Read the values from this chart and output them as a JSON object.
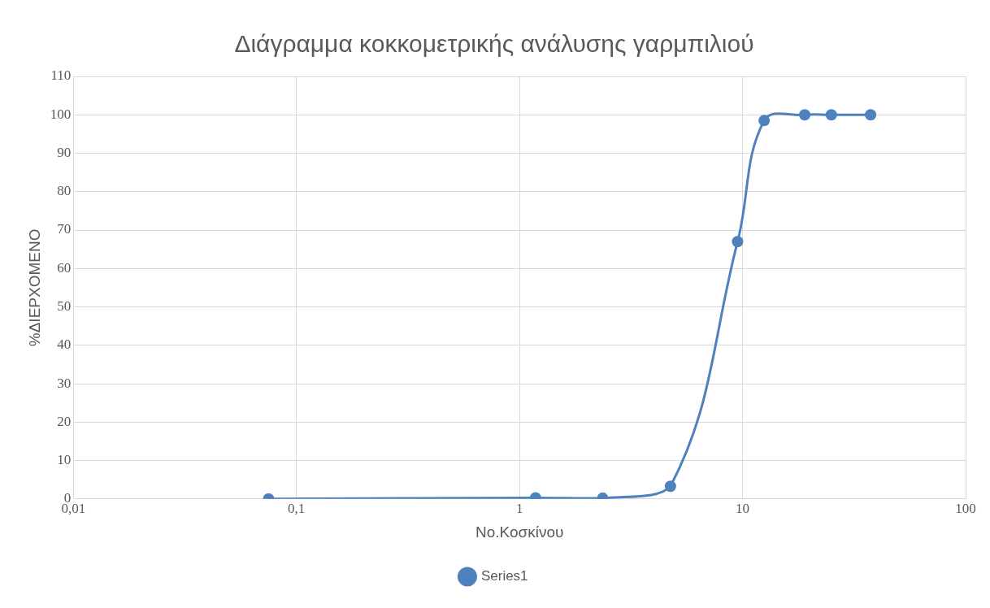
{
  "chart_data": {
    "type": "scatter",
    "title": "Διάγραμμα κοκκομετρικής ανάλυσης γαρμπιλιού",
    "xlabel": "No.Κοσκίνου",
    "ylabel": "%ΔΙΕΡΧΟΜΕΝΟ",
    "series": [
      {
        "name": "Series1",
        "color": "#4f81bd",
        "type": "line",
        "x": [
          0.075,
          1.18,
          2.36,
          4.75,
          9.5,
          12.5,
          19,
          25,
          37.5
        ],
        "values": [
          0,
          0.3,
          0.2,
          3.3,
          67,
          98.5,
          100,
          100,
          100
        ]
      }
    ],
    "log": "x",
    "xlim": [
      0.01,
      100
    ],
    "xticks": [
      {
        "value": 0.01,
        "label": "0,01"
      },
      {
        "value": 0.1,
        "label": "0,1"
      },
      1,
      10,
      100
    ],
    "ylim": [
      0,
      110
    ],
    "yticks": [
      0,
      10,
      20,
      30,
      40,
      50,
      60,
      70,
      80,
      90,
      100,
      110
    ],
    "grid": true,
    "legend": "bottom",
    "marker": "circle",
    "line_style": "solid"
  }
}
